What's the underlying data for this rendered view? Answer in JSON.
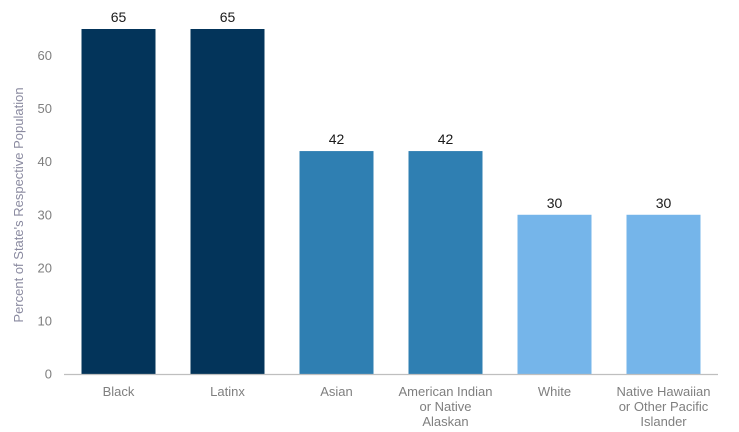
{
  "chart_data": {
    "type": "bar",
    "title": "",
    "xlabel": "",
    "ylabel": "Percent of State's Respective Population",
    "ylim": [
      0,
      65
    ],
    "yticks": [
      0,
      10,
      20,
      30,
      40,
      50,
      60
    ],
    "grid": false,
    "categories": [
      [
        "Black"
      ],
      [
        "Latinx"
      ],
      [
        "Asian"
      ],
      [
        "American Indian",
        "or Native",
        "Alaskan"
      ],
      [
        "White"
      ],
      [
        "Native Hawaiian",
        "or Other Pacific",
        "Islander"
      ]
    ],
    "values": [
      65,
      65,
      42,
      42,
      30,
      30
    ],
    "data_labels": [
      "65",
      "65",
      "42",
      "42",
      "30",
      "30"
    ],
    "colors": [
      "#03345a",
      "#03345a",
      "#2f7fb2",
      "#2f7fb2",
      "#75b5ea",
      "#75b5ea"
    ],
    "axis_color": "#bfbfbf"
  }
}
